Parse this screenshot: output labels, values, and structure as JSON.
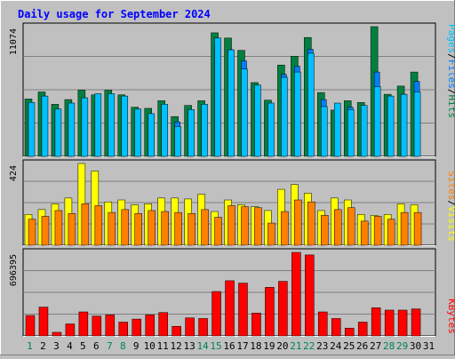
{
  "title": "Daily usage for September 2024",
  "colors": {
    "title": "#0000FF",
    "background": "#C0C0C0",
    "plot_bg": "#C0C0C0",
    "hits": "#008040",
    "files": "#0080FF",
    "pages": "#00C0FF",
    "visits": "#FFFF00",
    "sites": "#FF8000",
    "kbytes": "#FF0000",
    "weekday_label": "#000000",
    "weekend_label": "#00805C"
  },
  "legends": {
    "top": [
      "Hits",
      "Files",
      "Pages"
    ],
    "middle": [
      "Visits",
      "Sites"
    ],
    "bottom": [
      "KBytes"
    ]
  },
  "chart_data": [
    {
      "type": "bar",
      "name": "hits-files-pages",
      "categories": [
        "1",
        "2",
        "3",
        "4",
        "5",
        "6",
        "7",
        "8",
        "9",
        "10",
        "11",
        "12",
        "13",
        "14",
        "15",
        "16",
        "17",
        "18",
        "19",
        "20",
        "21",
        "22",
        "23",
        "24",
        "25",
        "26",
        "27",
        "28",
        "29",
        "30",
        "31"
      ],
      "max_label": "11074",
      "ylim": [
        0,
        11074
      ],
      "series": [
        {
          "name": "Hits",
          "values": [
            4900,
            5500,
            4450,
            4850,
            5650,
            5250,
            5650,
            5250,
            4200,
            4100,
            4750,
            3400,
            4350,
            4750,
            10550,
            10100,
            9050,
            6300,
            4800,
            7800,
            8550,
            10150,
            5450,
            3950,
            4750,
            4600,
            11074,
            5300,
            6000,
            7200,
            0
          ]
        },
        {
          "name": "Files",
          "values": [
            4400,
            4850,
            4000,
            4300,
            5000,
            4650,
            5000,
            4650,
            3700,
            3600,
            4200,
            2950,
            3800,
            4250,
            9500,
            9100,
            8150,
            5600,
            4250,
            7000,
            7700,
            9150,
            4850,
            3500,
            4200,
            4100,
            7200,
            4700,
            5300,
            6400,
            0
          ]
        },
        {
          "name": "Pages",
          "values": [
            4600,
            5150,
            4050,
            4550,
            5000,
            5350,
            5350,
            5150,
            4050,
            3650,
            4450,
            2550,
            4000,
            4450,
            10100,
            9100,
            7450,
            6100,
            4550,
            6750,
            7200,
            8800,
            4250,
            4550,
            4000,
            4350,
            5950,
            5150,
            5300,
            5500,
            0
          ]
        }
      ]
    },
    {
      "type": "bar",
      "name": "visits-sites",
      "categories": [
        "1",
        "2",
        "3",
        "4",
        "5",
        "6",
        "7",
        "8",
        "9",
        "10",
        "11",
        "12",
        "13",
        "14",
        "15",
        "16",
        "17",
        "18",
        "19",
        "20",
        "21",
        "22",
        "23",
        "24",
        "25",
        "26",
        "27",
        "28",
        "29",
        "30",
        "31"
      ],
      "max_label": "424",
      "ylim": [
        0,
        424
      ],
      "series": [
        {
          "name": "Visits",
          "values": [
            160,
            185,
            215,
            245,
            424,
            385,
            225,
            235,
            210,
            215,
            245,
            245,
            240,
            265,
            175,
            235,
            210,
            200,
            180,
            290,
            315,
            270,
            180,
            245,
            235,
            160,
            155,
            160,
            215,
            210,
            0
          ]
        },
        {
          "name": "Sites",
          "values": [
            135,
            150,
            180,
            165,
            215,
            205,
            170,
            185,
            165,
            180,
            175,
            170,
            165,
            185,
            145,
            205,
            200,
            195,
            115,
            175,
            235,
            225,
            155,
            185,
            195,
            125,
            150,
            135,
            170,
            170,
            0
          ]
        }
      ]
    },
    {
      "type": "bar",
      "name": "kbytes",
      "categories": [
        "1",
        "2",
        "3",
        "4",
        "5",
        "6",
        "7",
        "8",
        "9",
        "10",
        "11",
        "12",
        "13",
        "14",
        "15",
        "16",
        "17",
        "18",
        "19",
        "20",
        "21",
        "22",
        "23",
        "24",
        "25",
        "26",
        "27",
        "28",
        "29",
        "30",
        "31"
      ],
      "max_label": "696395",
      "ylim": [
        0,
        696395
      ],
      "series": [
        {
          "name": "KBytes",
          "values": [
            170000,
            240000,
            30000,
            100000,
            200000,
            165000,
            175000,
            115000,
            140000,
            175000,
            195000,
            80000,
            150000,
            145000,
            370000,
            460000,
            440000,
            190000,
            405000,
            455000,
            696395,
            675000,
            200000,
            145000,
            65000,
            115000,
            235000,
            215000,
            215000,
            225000,
            0
          ]
        }
      ]
    }
  ],
  "x_labels": {
    "days": [
      "1",
      "2",
      "3",
      "4",
      "5",
      "6",
      "7",
      "8",
      "9",
      "10",
      "11",
      "12",
      "13",
      "14",
      "15",
      "16",
      "17",
      "18",
      "19",
      "20",
      "21",
      "22",
      "23",
      "24",
      "25",
      "26",
      "27",
      "28",
      "29",
      "30",
      "31"
    ],
    "weekend": [
      "1",
      "7",
      "8",
      "14",
      "15",
      "21",
      "22",
      "28",
      "29"
    ]
  }
}
